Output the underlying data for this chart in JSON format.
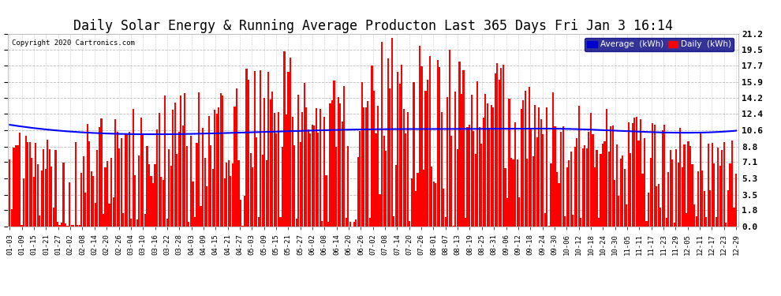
{
  "title": "Daily Solar Energy & Running Average Producton Last 365 Days Fri Jan 3 16:14",
  "copyright_text": "Copyright 2020 Cartronics.com",
  "yticks": [
    0.0,
    1.8,
    3.5,
    5.3,
    7.1,
    8.8,
    10.6,
    12.4,
    14.2,
    15.9,
    17.7,
    19.5,
    21.2
  ],
  "ylim": [
    0.0,
    21.2
  ],
  "bar_color": "#ff0000",
  "avg_color": "#0000ff",
  "background_color": "#ffffff",
  "plot_bg_color": "#ffffff",
  "grid_color": "#aaaaaa",
  "title_fontsize": 12,
  "legend_labels": [
    "Average  (kWh)",
    "Daily  (kWh)"
  ],
  "legend_bg_color": "#000080",
  "legend_text_color": "#ffffff",
  "avg_legend_color": "#0000cc",
  "daily_legend_color": "#ff0000",
  "xtick_labels": [
    "01-03",
    "01-09",
    "01-15",
    "01-21",
    "01-27",
    "02-02",
    "02-08",
    "02-14",
    "02-20",
    "02-26",
    "03-04",
    "03-10",
    "03-16",
    "03-22",
    "03-28",
    "04-03",
    "04-09",
    "04-15",
    "04-21",
    "04-27",
    "05-03",
    "05-09",
    "05-15",
    "05-21",
    "05-27",
    "06-02",
    "06-08",
    "06-14",
    "06-20",
    "06-26",
    "07-02",
    "07-08",
    "07-14",
    "07-20",
    "07-26",
    "08-01",
    "08-07",
    "08-13",
    "08-19",
    "08-25",
    "08-31",
    "09-06",
    "09-12",
    "09-18",
    "09-24",
    "09-30",
    "10-06",
    "10-12",
    "10-18",
    "10-24",
    "10-30",
    "11-05",
    "11-11",
    "11-17",
    "11-23",
    "11-29",
    "12-05",
    "12-11",
    "12-17",
    "12-23",
    "12-29"
  ],
  "num_bars": 366,
  "avg_curve_x": [
    0,
    55,
    110,
    180,
    240,
    280,
    310,
    365
  ],
  "avg_curve_y": [
    11.2,
    10.2,
    10.3,
    10.7,
    10.75,
    10.75,
    10.5,
    10.55
  ]
}
